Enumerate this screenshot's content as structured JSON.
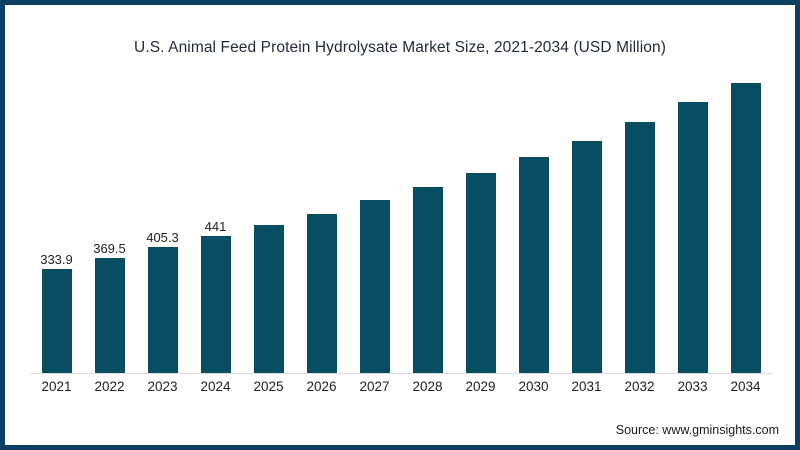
{
  "chart_data": {
    "type": "bar",
    "title": "U.S. Animal Feed Protein Hydrolysate Market Size, 2021-2034 (USD Million)",
    "categories": [
      "2021",
      "2022",
      "2023",
      "2024",
      "2025",
      "2026",
      "2027",
      "2028",
      "2029",
      "2030",
      "2031",
      "2032",
      "2033",
      "2034"
    ],
    "values": [
      333.9,
      369.5,
      405.3,
      441,
      475,
      511,
      556,
      597,
      642,
      693,
      745,
      806,
      870,
      931
    ],
    "data_labels": [
      "333.9",
      "369.5",
      "405.3",
      "441",
      "",
      "",
      "",
      "",
      "",
      "",
      "",
      "",
      "",
      ""
    ],
    "xlabel": "",
    "ylabel": "",
    "ylim": [
      0,
      957
    ],
    "grid": false,
    "legend": "none",
    "bar_color": "#084e63",
    "frame_color": "#0d3f63",
    "baseline_color": "#dcdcdc"
  },
  "footer": {
    "source": "Source: www.gminsights.com"
  }
}
